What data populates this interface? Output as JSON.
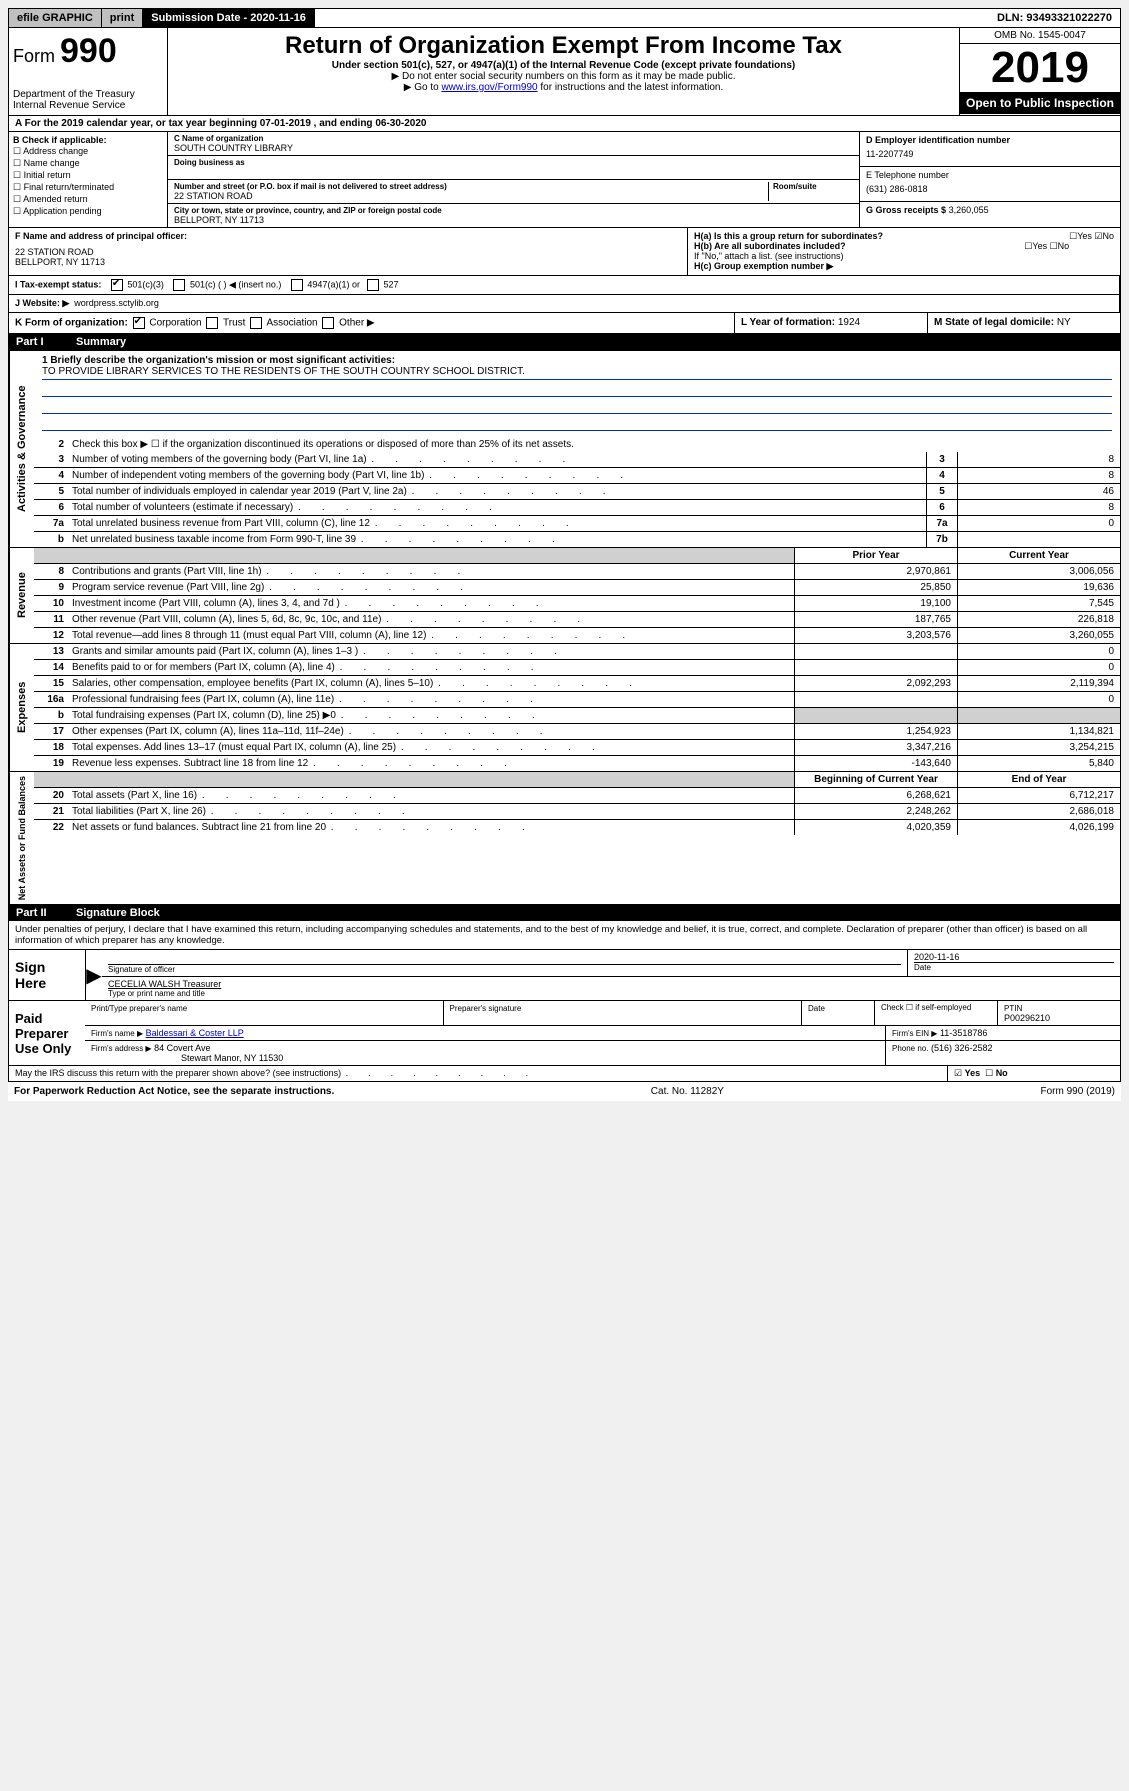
{
  "topbar": {
    "efile": "efile GRAPHIC",
    "print": "print",
    "submission_label": "Submission Date - 2020-11-16",
    "dln": "DLN: 93493321022270"
  },
  "header": {
    "form_label": "Form",
    "form_number": "990",
    "title": "Return of Organization Exempt From Income Tax",
    "subtitle": "Under section 501(c), 527, or 4947(a)(1) of the Internal Revenue Code (except private foundations)",
    "line1": "▶ Do not enter social security numbers on this form as it may be made public.",
    "line2_pre": "▶ Go to ",
    "line2_link": "www.irs.gov/Form990",
    "line2_post": " for instructions and the latest information.",
    "dept": "Department of the Treasury\nInternal Revenue Service",
    "omb": "OMB No. 1545-0047",
    "year": "2019",
    "open_public": "Open to Public Inspection"
  },
  "line_a": "A For the 2019 calendar year, or tax year beginning 07-01-2019    , and ending 06-30-2020",
  "box_b": {
    "label": "B Check if applicable:",
    "items": [
      "Address change",
      "Name change",
      "Initial return",
      "Final return/terminated",
      "Amended return",
      "Application pending"
    ]
  },
  "box_c": {
    "name_label": "C Name of organization",
    "name": "SOUTH COUNTRY LIBRARY",
    "dba_label": "Doing business as",
    "addr_label": "Number and street (or P.O. box if mail is not delivered to street address)",
    "room_label": "Room/suite",
    "addr": "22 STATION ROAD",
    "city_label": "City or town, state or province, country, and ZIP or foreign postal code",
    "city": "BELLPORT, NY  11713"
  },
  "box_d": {
    "ein_label": "D Employer identification number",
    "ein": "11-2207749",
    "phone_label": "E Telephone number",
    "phone": "(631) 286-0818",
    "gross_label": "G Gross receipts $",
    "gross": "3,260,055"
  },
  "box_f": {
    "label": "F  Name and address of principal officer:",
    "addr1": "22 STATION ROAD",
    "addr2": "BELLPORT, NY  11713"
  },
  "box_h": {
    "a": "H(a)  Is this a group return for subordinates?",
    "b": "H(b)  Are all subordinates included?",
    "note": "If \"No,\" attach a list. (see instructions)",
    "c": "H(c)  Group exemption number ▶"
  },
  "box_i": {
    "label": "I   Tax-exempt status:",
    "opt1": "501(c)(3)",
    "opt2": "501(c) (   ) ◀ (insert no.)",
    "opt3": "4947(a)(1) or",
    "opt4": "527"
  },
  "box_j": {
    "label": "J   Website: ▶",
    "value": "wordpress.sctylib.org"
  },
  "box_k": {
    "label": "K Form of organization:",
    "opts": [
      "Corporation",
      "Trust",
      "Association",
      "Other ▶"
    ]
  },
  "box_l": {
    "label": "L Year of formation:",
    "value": "1924"
  },
  "box_m": {
    "label": "M State of legal domicile:",
    "value": "NY"
  },
  "part1": {
    "num": "Part I",
    "title": "Summary"
  },
  "mission": {
    "q": "1  Briefly describe the organization's mission or most significant activities:",
    "text": "TO PROVIDE LIBRARY SERVICES TO THE RESIDENTS OF THE SOUTH COUNTRY SCHOOL DISTRICT."
  },
  "gov_rows": [
    {
      "n": "2",
      "t": "Check this box ▶ ☐  if the organization discontinued its operations or disposed of more than 25% of its net assets."
    },
    {
      "n": "3",
      "t": "Number of voting members of the governing body (Part VI, line 1a)",
      "box": "3",
      "v": "8"
    },
    {
      "n": "4",
      "t": "Number of independent voting members of the governing body (Part VI, line 1b)",
      "box": "4",
      "v": "8"
    },
    {
      "n": "5",
      "t": "Total number of individuals employed in calendar year 2019 (Part V, line 2a)",
      "box": "5",
      "v": "46"
    },
    {
      "n": "6",
      "t": "Total number of volunteers (estimate if necessary)",
      "box": "6",
      "v": "8"
    },
    {
      "n": "7a",
      "t": "Total unrelated business revenue from Part VIII, column (C), line 12",
      "box": "7a",
      "v": "0"
    },
    {
      "n": "b",
      "t": "Net unrelated business taxable income from Form 990-T, line 39",
      "box": "7b",
      "v": ""
    }
  ],
  "rev_header": {
    "prior": "Prior Year",
    "current": "Current Year"
  },
  "rev_rows": [
    {
      "n": "8",
      "t": "Contributions and grants (Part VIII, line 1h)",
      "p": "2,970,861",
      "c": "3,006,056"
    },
    {
      "n": "9",
      "t": "Program service revenue (Part VIII, line 2g)",
      "p": "25,850",
      "c": "19,636"
    },
    {
      "n": "10",
      "t": "Investment income (Part VIII, column (A), lines 3, 4, and 7d )",
      "p": "19,100",
      "c": "7,545"
    },
    {
      "n": "11",
      "t": "Other revenue (Part VIII, column (A), lines 5, 6d, 8c, 9c, 10c, and 11e)",
      "p": "187,765",
      "c": "226,818"
    },
    {
      "n": "12",
      "t": "Total revenue—add lines 8 through 11 (must equal Part VIII, column (A), line 12)",
      "p": "3,203,576",
      "c": "3,260,055"
    }
  ],
  "exp_rows": [
    {
      "n": "13",
      "t": "Grants and similar amounts paid (Part IX, column (A), lines 1–3 )",
      "p": "",
      "c": "0"
    },
    {
      "n": "14",
      "t": "Benefits paid to or for members (Part IX, column (A), line 4)",
      "p": "",
      "c": "0"
    },
    {
      "n": "15",
      "t": "Salaries, other compensation, employee benefits (Part IX, column (A), lines 5–10)",
      "p": "2,092,293",
      "c": "2,119,394"
    },
    {
      "n": "16a",
      "t": "Professional fundraising fees (Part IX, column (A), line 11e)",
      "p": "",
      "c": "0"
    },
    {
      "n": "b",
      "t": "Total fundraising expenses (Part IX, column (D), line 25) ▶0",
      "p": "",
      "c": "",
      "shade": true
    },
    {
      "n": "17",
      "t": "Other expenses (Part IX, column (A), lines 11a–11d, 11f–24e)",
      "p": "1,254,923",
      "c": "1,134,821"
    },
    {
      "n": "18",
      "t": "Total expenses. Add lines 13–17 (must equal Part IX, column (A), line 25)",
      "p": "3,347,216",
      "c": "3,254,215"
    },
    {
      "n": "19",
      "t": "Revenue less expenses. Subtract line 18 from line 12",
      "p": "-143,640",
      "c": "5,840"
    }
  ],
  "na_header": {
    "prior": "Beginning of Current Year",
    "current": "End of Year"
  },
  "na_rows": [
    {
      "n": "20",
      "t": "Total assets (Part X, line 16)",
      "p": "6,268,621",
      "c": "6,712,217"
    },
    {
      "n": "21",
      "t": "Total liabilities (Part X, line 26)",
      "p": "2,248,262",
      "c": "2,686,018"
    },
    {
      "n": "22",
      "t": "Net assets or fund balances. Subtract line 21 from line 20",
      "p": "4,020,359",
      "c": "4,026,199"
    }
  ],
  "part2": {
    "num": "Part II",
    "title": "Signature Block"
  },
  "sig": {
    "declaration": "Under penalties of perjury, I declare that I have examined this return, including accompanying schedules and statements, and to the best of my knowledge and belief, it is true, correct, and complete. Declaration of preparer (other than officer) is based on all information of which preparer has any knowledge.",
    "sign_here": "Sign Here",
    "sig_officer": "Signature of officer",
    "date_label": "Date",
    "date": "2020-11-16",
    "name": "CECELIA WALSH  Treasurer",
    "name_label": "Type or print name and title",
    "paid": "Paid Preparer Use Only",
    "prep_name_label": "Print/Type preparer's name",
    "prep_sig_label": "Preparer's signature",
    "prep_date_label": "Date",
    "check_label": "Check ☐ if self-employed",
    "ptin_label": "PTIN",
    "ptin": "P00296210",
    "firm_name_label": "Firm's name    ▶",
    "firm_name": "Baldessari & Coster LLP",
    "firm_ein_label": "Firm's EIN ▶",
    "firm_ein": "11-3518786",
    "firm_addr_label": "Firm's address ▶",
    "firm_addr1": "84 Covert Ave",
    "firm_addr2": "Stewart Manor, NY  11530",
    "phone_label": "Phone no.",
    "phone": "(516) 326-2582",
    "discuss": "May the IRS discuss this return with the preparer shown above? (see instructions)"
  },
  "footer": {
    "left": "For Paperwork Reduction Act Notice, see the separate instructions.",
    "mid": "Cat. No. 11282Y",
    "right": "Form 990 (2019)"
  }
}
